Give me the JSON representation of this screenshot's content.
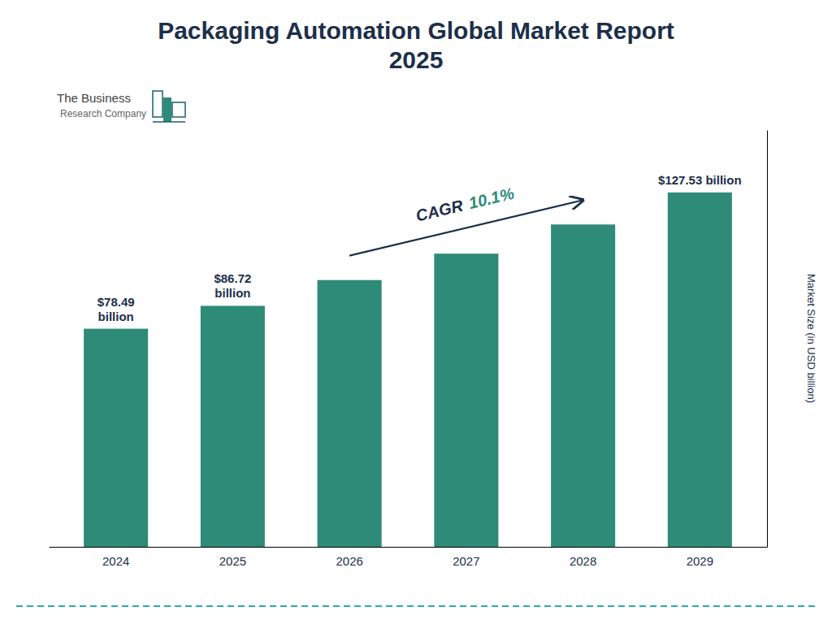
{
  "chart_data": {
    "type": "bar",
    "title": "Packaging Automation Global Market Report\n2025",
    "categories": [
      "2024",
      "2025",
      "2026",
      "2027",
      "2028",
      "2029"
    ],
    "values": [
      78.49,
      86.72,
      96.0,
      105.5,
      116.0,
      127.53
    ],
    "value_labels": [
      "$78.49\nbillion",
      "$86.72\nbillion",
      null,
      null,
      null,
      "$127.53 billion"
    ],
    "data_labels": true,
    "color": "#2e8b78",
    "ylabel": "Market Size (in USD billion)",
    "ylim": [
      0,
      150
    ],
    "grid": false,
    "tick_labels": "x",
    "annotations": [
      "CAGR",
      "10.1%",
      "The Business",
      "Research Company"
    ]
  }
}
